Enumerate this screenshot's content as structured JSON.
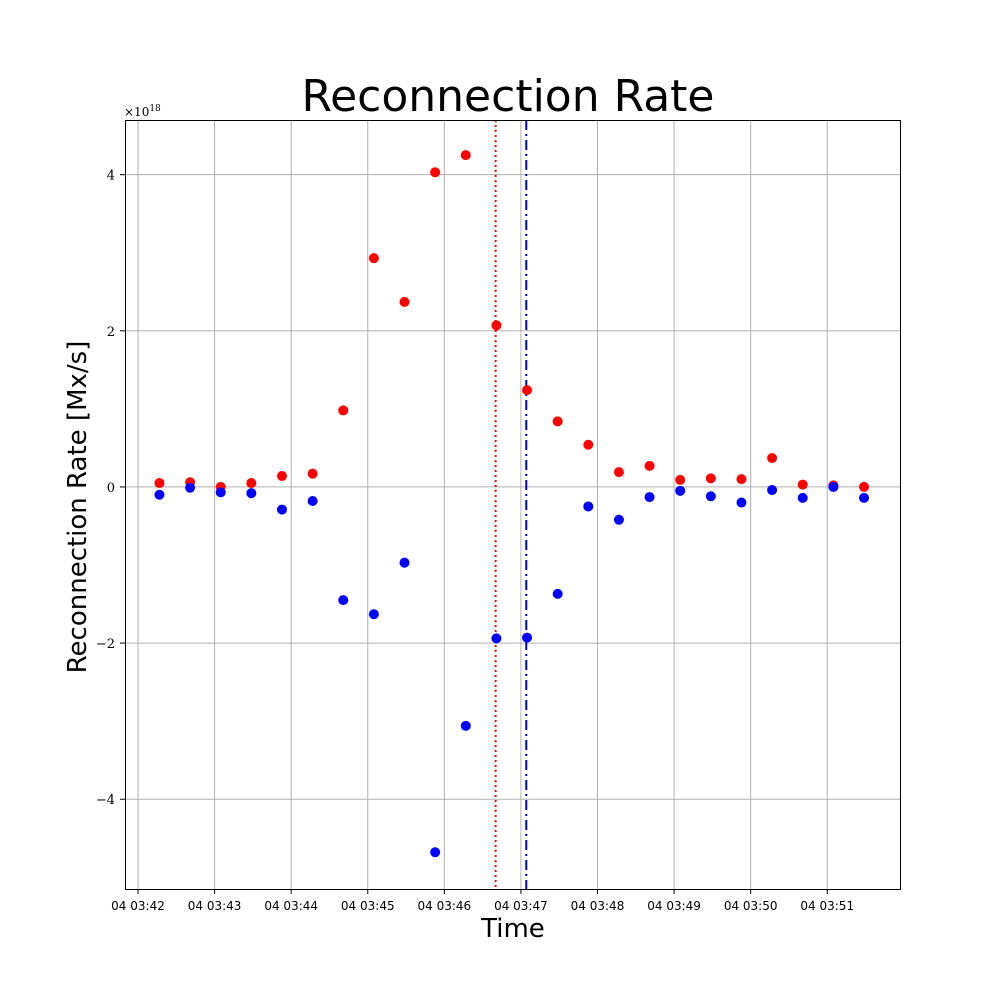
{
  "chart_data": {
    "type": "scatter",
    "title": "Reconnection Rate",
    "xlabel": "Time",
    "ylabel": "Reconnection Rate [Mx/s]",
    "y_exponent_label": "×10",
    "y_exponent_power": "18",
    "y_scale_factor": 1e+18,
    "xlim_minutes": [
      41.83,
      51.95
    ],
    "ylim": [
      -5.15,
      4.7
    ],
    "grid": true,
    "x_ticks": [
      {
        "value": 42,
        "label": "04 03:42"
      },
      {
        "value": 43,
        "label": "04 03:43"
      },
      {
        "value": 44,
        "label": "04 03:44"
      },
      {
        "value": 45,
        "label": "04 03:45"
      },
      {
        "value": 46,
        "label": "04 03:46"
      },
      {
        "value": 47,
        "label": "04 03:47"
      },
      {
        "value": 48,
        "label": "04 03:48"
      },
      {
        "value": 49,
        "label": "04 03:49"
      },
      {
        "value": 50,
        "label": "04 03:50"
      },
      {
        "value": 51,
        "label": "04 03:51"
      }
    ],
    "y_ticks": [
      {
        "value": -4,
        "label": "−4"
      },
      {
        "value": -2,
        "label": "−2"
      },
      {
        "value": 0,
        "label": "0"
      },
      {
        "value": 2,
        "label": "2"
      },
      {
        "value": 4,
        "label": "4"
      }
    ],
    "series": [
      {
        "color": "#ff0000",
        "x": [
          42.28,
          42.68,
          43.08,
          43.48,
          43.88,
          44.28,
          44.68,
          45.08,
          45.48,
          45.88,
          46.28,
          46.68,
          47.08,
          47.48,
          47.88,
          48.28,
          48.68,
          49.08,
          49.48,
          49.88,
          50.28,
          50.68,
          51.08,
          51.48
        ],
        "y": [
          0.05,
          0.06,
          0.0,
          0.05,
          0.14,
          0.17,
          0.98,
          2.93,
          2.37,
          4.03,
          4.25,
          2.07,
          1.24,
          0.84,
          0.54,
          0.19,
          0.27,
          0.09,
          0.11,
          0.1,
          0.37,
          0.03,
          0.02,
          0.0
        ]
      },
      {
        "color": "#0000ff",
        "x": [
          42.28,
          42.68,
          43.08,
          43.48,
          43.88,
          44.28,
          44.68,
          45.08,
          45.48,
          45.88,
          46.28,
          46.68,
          47.08,
          47.48,
          47.88,
          48.28,
          48.68,
          49.08,
          49.48,
          49.88,
          50.28,
          50.68,
          51.08,
          51.48
        ],
        "y": [
          -0.1,
          -0.01,
          -0.07,
          -0.08,
          -0.29,
          -0.18,
          -1.45,
          -1.63,
          -0.97,
          -4.68,
          -3.06,
          -1.94,
          -1.93,
          -1.37,
          -0.25,
          -0.42,
          -0.13,
          -0.05,
          -0.12,
          -0.2,
          -0.04,
          -0.14,
          0.0,
          -0.14
        ]
      }
    ],
    "vlines": [
      {
        "x": 46.67,
        "color": "#ff0000",
        "style": "dotted"
      },
      {
        "x": 47.07,
        "color": "#0000cc",
        "style": "dashdot"
      }
    ]
  }
}
